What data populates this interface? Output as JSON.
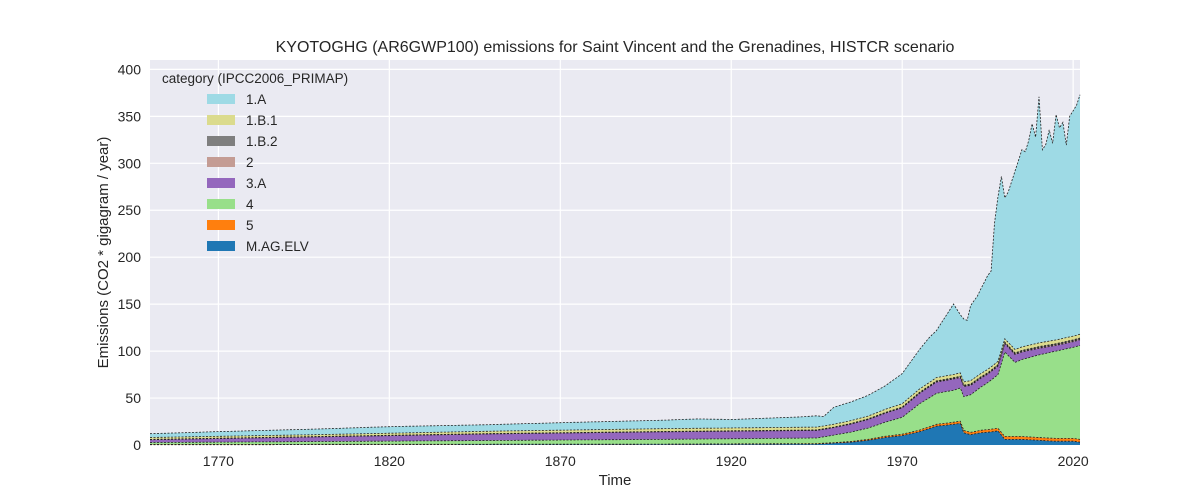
{
  "chart_data": {
    "type": "area",
    "title": "KYOTOGHG (AR6GWP100) emissions for Saint Vincent and the Grenadines, HISTCR scenario",
    "xlabel": "Time",
    "ylabel": "Emissions (CO2 * gigagram / year)",
    "xlim": [
      1750,
      2022
    ],
    "ylim": [
      0,
      410
    ],
    "xticks": [
      1770,
      1820,
      1870,
      1920,
      1970,
      2020
    ],
    "yticks": [
      0,
      50,
      100,
      150,
      200,
      250,
      300,
      350,
      400
    ],
    "grid": true,
    "stacked": true,
    "legend": {
      "title": "category (IPCC2006_PRIMAP)",
      "placement": "top-left"
    },
    "series": [
      {
        "name": "M.AG.ELV",
        "color": "#1f77b4",
        "points": [
          [
            1750,
            0.3
          ],
          [
            1800,
            0.4
          ],
          [
            1850,
            0.5
          ],
          [
            1900,
            0.6
          ],
          [
            1945,
            1
          ],
          [
            1950,
            2
          ],
          [
            1955,
            3
          ],
          [
            1960,
            5
          ],
          [
            1965,
            8
          ],
          [
            1970,
            10
          ],
          [
            1975,
            14
          ],
          [
            1980,
            20
          ],
          [
            1985,
            22
          ],
          [
            1987,
            23
          ],
          [
            1988,
            13
          ],
          [
            1990,
            11
          ],
          [
            1993,
            13
          ],
          [
            1996,
            14
          ],
          [
            1998,
            15
          ],
          [
            2000,
            6
          ],
          [
            2005,
            6
          ],
          [
            2010,
            5
          ],
          [
            2015,
            4
          ],
          [
            2020,
            4
          ],
          [
            2022,
            3
          ]
        ]
      },
      {
        "name": "5",
        "color": "#ff7f0e",
        "points": [
          [
            1750,
            0.3
          ],
          [
            1850,
            0.3
          ],
          [
            1950,
            0.5
          ],
          [
            1960,
            1
          ],
          [
            1970,
            1.5
          ],
          [
            1980,
            2
          ],
          [
            1990,
            2.5
          ],
          [
            2000,
            3
          ],
          [
            2010,
            3
          ],
          [
            2022,
            3
          ]
        ]
      },
      {
        "name": "4",
        "color": "#98df8a",
        "points": [
          [
            1750,
            2
          ],
          [
            1800,
            3
          ],
          [
            1850,
            4
          ],
          [
            1900,
            5
          ],
          [
            1945,
            6
          ],
          [
            1950,
            8
          ],
          [
            1960,
            12
          ],
          [
            1970,
            18
          ],
          [
            1975,
            28
          ],
          [
            1980,
            33
          ],
          [
            1985,
            34
          ],
          [
            1988,
            36
          ],
          [
            1990,
            40
          ],
          [
            1995,
            50
          ],
          [
            1998,
            57
          ],
          [
            2000,
            90
          ],
          [
            2003,
            79
          ],
          [
            2005,
            82
          ],
          [
            2010,
            88
          ],
          [
            2015,
            93
          ],
          [
            2020,
            97
          ],
          [
            2022,
            100
          ]
        ]
      },
      {
        "name": "3.A",
        "color": "#9467bd",
        "points": [
          [
            1750,
            3
          ],
          [
            1800,
            5
          ],
          [
            1850,
            7
          ],
          [
            1900,
            8
          ],
          [
            1940,
            8
          ],
          [
            1950,
            8
          ],
          [
            1960,
            9
          ],
          [
            1970,
            10
          ],
          [
            1975,
            11
          ],
          [
            1980,
            12
          ],
          [
            1985,
            12
          ],
          [
            1990,
            10
          ],
          [
            1995,
            9
          ],
          [
            2000,
            9
          ],
          [
            2005,
            8
          ],
          [
            2010,
            7
          ],
          [
            2015,
            6
          ],
          [
            2020,
            6
          ],
          [
            2022,
            6
          ]
        ]
      },
      {
        "name": "2",
        "color": "#c49c94",
        "points": [
          [
            1750,
            0.2
          ],
          [
            1900,
            0.2
          ],
          [
            1950,
            0.3
          ],
          [
            1970,
            0.5
          ],
          [
            1990,
            0.7
          ],
          [
            2000,
            0.8
          ],
          [
            2022,
            1
          ]
        ]
      },
      {
        "name": "1.B.2",
        "color": "#7f7f7f",
        "points": [
          [
            1750,
            0.2
          ],
          [
            1900,
            0.2
          ],
          [
            1950,
            0.3
          ],
          [
            1970,
            0.5
          ],
          [
            1990,
            0.8
          ],
          [
            2000,
            0.8
          ],
          [
            2022,
            1
          ]
        ]
      },
      {
        "name": "1.B.1",
        "color": "#dbdb8d",
        "points": [
          [
            1750,
            2
          ],
          [
            1800,
            2
          ],
          [
            1850,
            2.5
          ],
          [
            1900,
            3
          ],
          [
            1950,
            3
          ],
          [
            1960,
            3
          ],
          [
            1970,
            3.5
          ],
          [
            1980,
            3.5
          ],
          [
            1990,
            3.5
          ],
          [
            2000,
            3.5
          ],
          [
            2010,
            4
          ],
          [
            2022,
            4
          ]
        ]
      },
      {
        "name": "1.A",
        "color": "#9edae5",
        "points": [
          [
            1750,
            4
          ],
          [
            1770,
            5
          ],
          [
            1800,
            6
          ],
          [
            1820,
            7
          ],
          [
            1850,
            7
          ],
          [
            1870,
            8
          ],
          [
            1900,
            9
          ],
          [
            1910,
            10
          ],
          [
            1920,
            9
          ],
          [
            1940,
            11
          ],
          [
            1945,
            12
          ],
          [
            1947,
            10
          ],
          [
            1950,
            18
          ],
          [
            1955,
            20
          ],
          [
            1960,
            22
          ],
          [
            1965,
            25
          ],
          [
            1970,
            32
          ],
          [
            1975,
            42
          ],
          [
            1978,
            48
          ],
          [
            1980,
            50
          ],
          [
            1982,
            60
          ],
          [
            1985,
            75
          ],
          [
            1987,
            62
          ],
          [
            1988,
            67
          ],
          [
            1989,
            65
          ],
          [
            1990,
            80
          ],
          [
            1992,
            85
          ],
          [
            1995,
            100
          ],
          [
            1996,
            102
          ],
          [
            1997,
            150
          ],
          [
            1998,
            175
          ],
          [
            1999,
            185
          ],
          [
            2000,
            150
          ],
          [
            2001,
            160
          ],
          [
            2003,
            190
          ],
          [
            2004,
            200
          ],
          [
            2005,
            210
          ],
          [
            2006,
            207
          ],
          [
            2007,
            218
          ],
          [
            2008,
            235
          ],
          [
            2009,
            220
          ],
          [
            2010,
            262
          ],
          [
            2011,
            205
          ],
          [
            2012,
            210
          ],
          [
            2013,
            225
          ],
          [
            2014,
            210
          ],
          [
            2015,
            240
          ],
          [
            2016,
            225
          ],
          [
            2017,
            230
          ],
          [
            2018,
            205
          ],
          [
            2019,
            235
          ],
          [
            2020,
            240
          ],
          [
            2021,
            245
          ],
          [
            2022,
            255
          ]
        ]
      }
    ]
  }
}
